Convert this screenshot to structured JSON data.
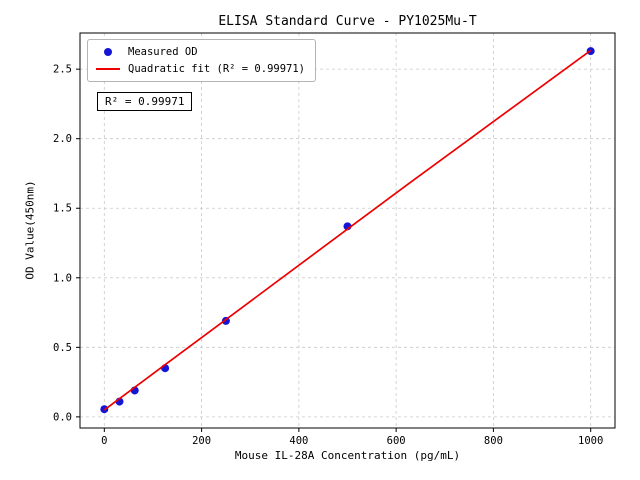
{
  "title": "ELISA Standard Curve - PY1025Mu-T",
  "colors": {
    "point": "#1515d6",
    "fit_line": "#ee0000",
    "grid": "#c9c9c9",
    "axis": "#000000",
    "legend_border": "#b4b4b4"
  },
  "annotation": "R² = 0.99971",
  "chart_data": {
    "type": "scatter",
    "title": "ELISA Standard Curve - PY1025Mu-T",
    "xlabel": "Mouse IL-28A Concentration (pg/mL)",
    "ylabel": "OD Value(450nm)",
    "xlim": [
      -50,
      1050
    ],
    "ylim": [
      -0.08,
      2.76
    ],
    "x_ticks": [
      0,
      200,
      400,
      600,
      800,
      1000
    ],
    "x_tick_labels": [
      "0",
      "200",
      "400",
      "600",
      "800",
      "1000"
    ],
    "y_ticks": [
      0,
      0.5,
      1.0,
      1.5,
      2.0,
      2.5
    ],
    "y_tick_labels": [
      "0.0",
      "0.5",
      "1.0",
      "1.5",
      "2.0",
      "2.5"
    ],
    "grid": true,
    "grid_style": "dashed",
    "legend": {
      "position": "upper left",
      "entries": [
        {
          "label": "Measured OD",
          "marker": "circle",
          "color": "#1515d6"
        },
        {
          "label": "Quadratic fit (R² = 0.99971)",
          "marker": "line",
          "color": "#ee0000"
        }
      ]
    },
    "annotation": "R² = 0.99971",
    "series": [
      {
        "name": "Measured OD",
        "type": "scatter",
        "color": "#1515d6",
        "x": [
          0,
          31.25,
          62.5,
          125,
          250,
          500,
          1000
        ],
        "y": [
          0.055,
          0.11,
          0.19,
          0.35,
          0.69,
          1.37,
          2.63
        ]
      },
      {
        "name": "Quadratic fit",
        "type": "line",
        "color": "#ee0000",
        "x": [
          0,
          125,
          250,
          375,
          500,
          625,
          750,
          875,
          1000
        ],
        "y": [
          0.05,
          0.375,
          0.7,
          1.025,
          1.35,
          1.675,
          1.995,
          2.315,
          2.635
        ]
      }
    ]
  }
}
